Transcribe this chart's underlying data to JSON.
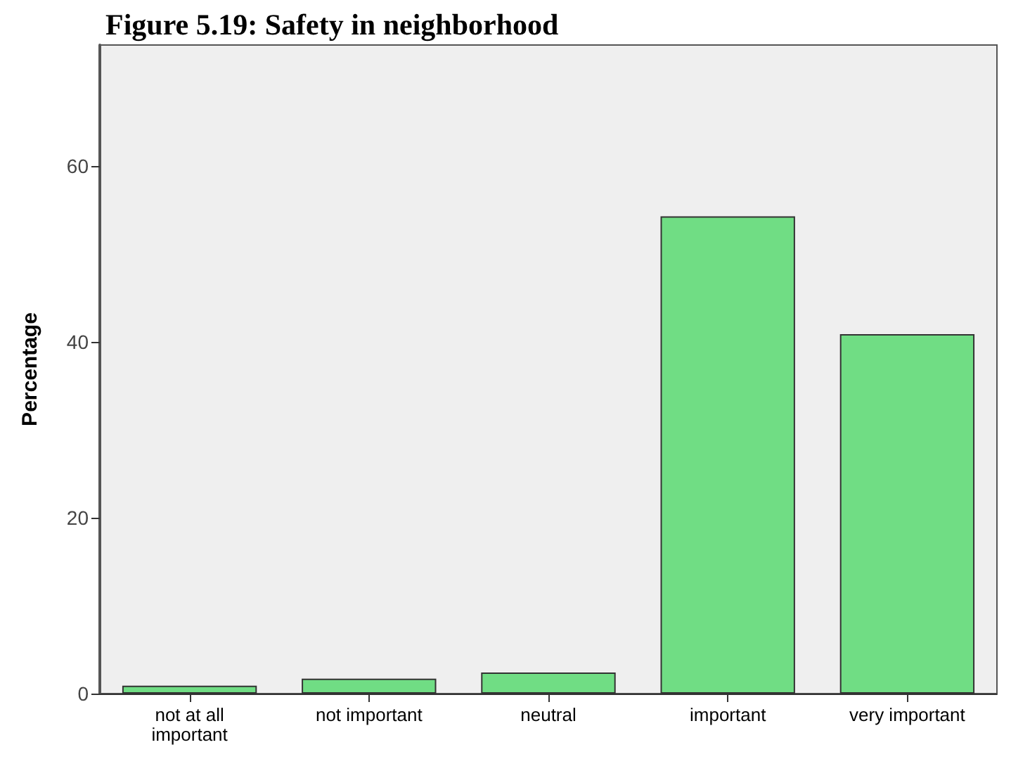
{
  "chart_data": {
    "type": "bar",
    "title": "Figure 5.19: Safety in neighborhood",
    "ylabel": "Percentage",
    "categories": [
      "not at all\nimportant",
      "not important",
      "neutral",
      "important",
      "very important"
    ],
    "values": [
      0.9,
      1.7,
      2.4,
      54.3,
      40.9
    ],
    "color": "#70dd84",
    "ylim": [
      0,
      73.8
    ],
    "yticks": [
      0,
      20,
      40,
      60
    ],
    "grid": false
  }
}
